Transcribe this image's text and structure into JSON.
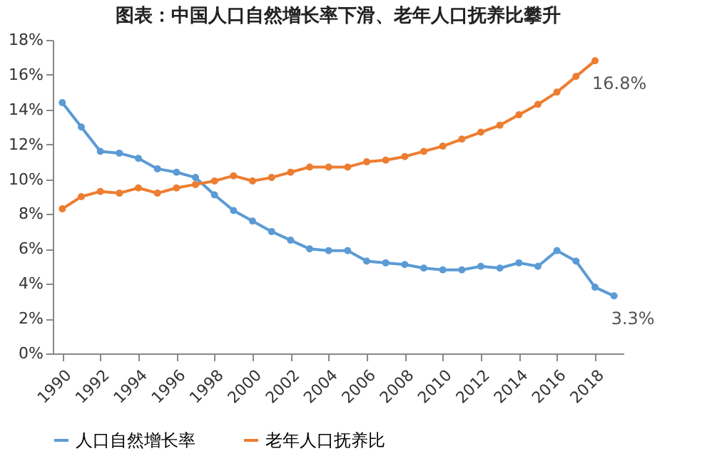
{
  "chart_data": {
    "type": "line",
    "title": "图表：中国人口自然增长率下滑、老年人口抚养比攀升",
    "x": [
      1990,
      1991,
      1992,
      1993,
      1994,
      1995,
      1996,
      1997,
      1998,
      1999,
      2000,
      2001,
      2002,
      2003,
      2004,
      2005,
      2006,
      2007,
      2008,
      2009,
      2010,
      2011,
      2012,
      2013,
      2014,
      2015,
      2016,
      2017,
      2018,
      2019
    ],
    "series": [
      {
        "name": "人口自然增长率",
        "color": "#5b9bd5",
        "values": [
          14.4,
          13.0,
          11.6,
          11.5,
          11.2,
          10.6,
          10.4,
          10.1,
          9.1,
          8.2,
          7.6,
          7.0,
          6.5,
          6.0,
          5.9,
          5.9,
          5.3,
          5.2,
          5.1,
          4.9,
          4.8,
          4.8,
          5.0,
          4.9,
          5.2,
          5.0,
          5.9,
          5.3,
          3.8,
          3.3
        ]
      },
      {
        "name": "老年人口抚养比",
        "color": "#ed7d31",
        "values": [
          8.3,
          9.0,
          9.3,
          9.2,
          9.5,
          9.2,
          9.5,
          9.7,
          9.9,
          10.2,
          9.9,
          10.1,
          10.4,
          10.7,
          10.7,
          10.7,
          11.0,
          11.1,
          11.3,
          11.6,
          11.9,
          12.3,
          12.7,
          13.1,
          13.7,
          14.3,
          15.0,
          15.9,
          16.8,
          null
        ]
      }
    ],
    "xlim": [
      1989.5,
      2019.5
    ],
    "xticks": [
      1990,
      1992,
      1994,
      1996,
      1998,
      2000,
      2002,
      2004,
      2006,
      2008,
      2010,
      2012,
      2014,
      2016,
      2018
    ],
    "ylim": [
      0,
      18
    ],
    "yticks": [
      {
        "value": 0,
        "label": "0%"
      },
      {
        "value": 2,
        "label": "2%"
      },
      {
        "value": 4,
        "label": "4%"
      },
      {
        "value": 6,
        "label": "6%"
      },
      {
        "value": 8,
        "label": "8%"
      },
      {
        "value": 10,
        "label": "10%"
      },
      {
        "value": 12,
        "label": "12%"
      },
      {
        "value": 14,
        "label": "14%"
      },
      {
        "value": 16,
        "label": "16%"
      },
      {
        "value": 18,
        "label": "18%"
      }
    ],
    "annotations": [
      {
        "text": "16.8%",
        "x": 2018,
        "y": 16.8
      },
      {
        "text": "3.3%",
        "x": 2019,
        "y": 3.3
      }
    ],
    "grid": false,
    "legend": "bottom",
    "marker": "circle",
    "line_style": "solid"
  }
}
